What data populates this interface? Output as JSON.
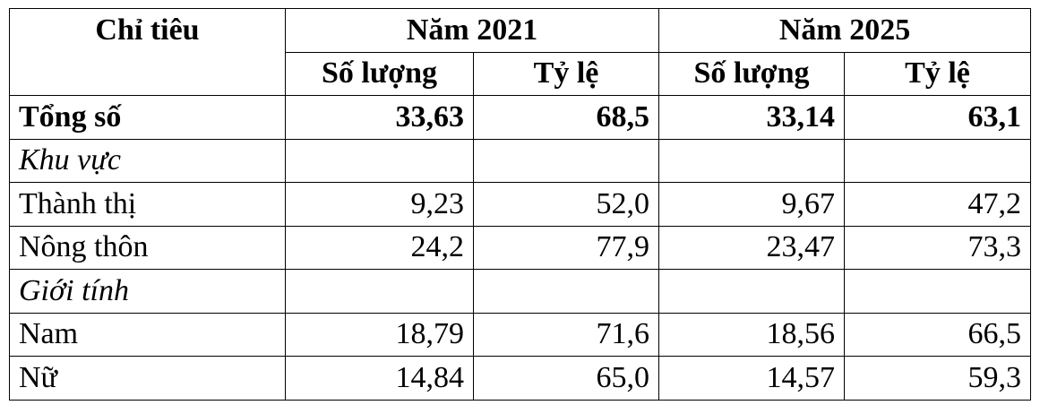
{
  "table": {
    "header": {
      "row_label": "Chỉ tiêu",
      "groups": [
        "Năm 2021",
        "Năm 2025"
      ],
      "subheaders": [
        "Số lượng",
        "Tỷ lệ",
        "Số lượng",
        "Tỷ lệ"
      ]
    },
    "total": {
      "label": "Tổng số",
      "cells": [
        "33,63",
        "68,5",
        "33,14",
        "63,1"
      ]
    },
    "sections": [
      {
        "title": "Khu vực",
        "rows": [
          {
            "label": "Thành thị",
            "cells": [
              "9,23",
              "52,0",
              "9,67",
              "47,2"
            ]
          },
          {
            "label": "Nông thôn",
            "cells": [
              "24,2",
              "77,9",
              "23,47",
              "73,3"
            ]
          }
        ]
      },
      {
        "title": "Giới tính",
        "rows": [
          {
            "label": "Nam",
            "cells": [
              "18,79",
              "71,6",
              "18,56",
              "66,5"
            ]
          },
          {
            "label": "Nữ",
            "cells": [
              "14,84",
              "65,0",
              "14,57",
              "59,3"
            ]
          }
        ]
      }
    ]
  }
}
